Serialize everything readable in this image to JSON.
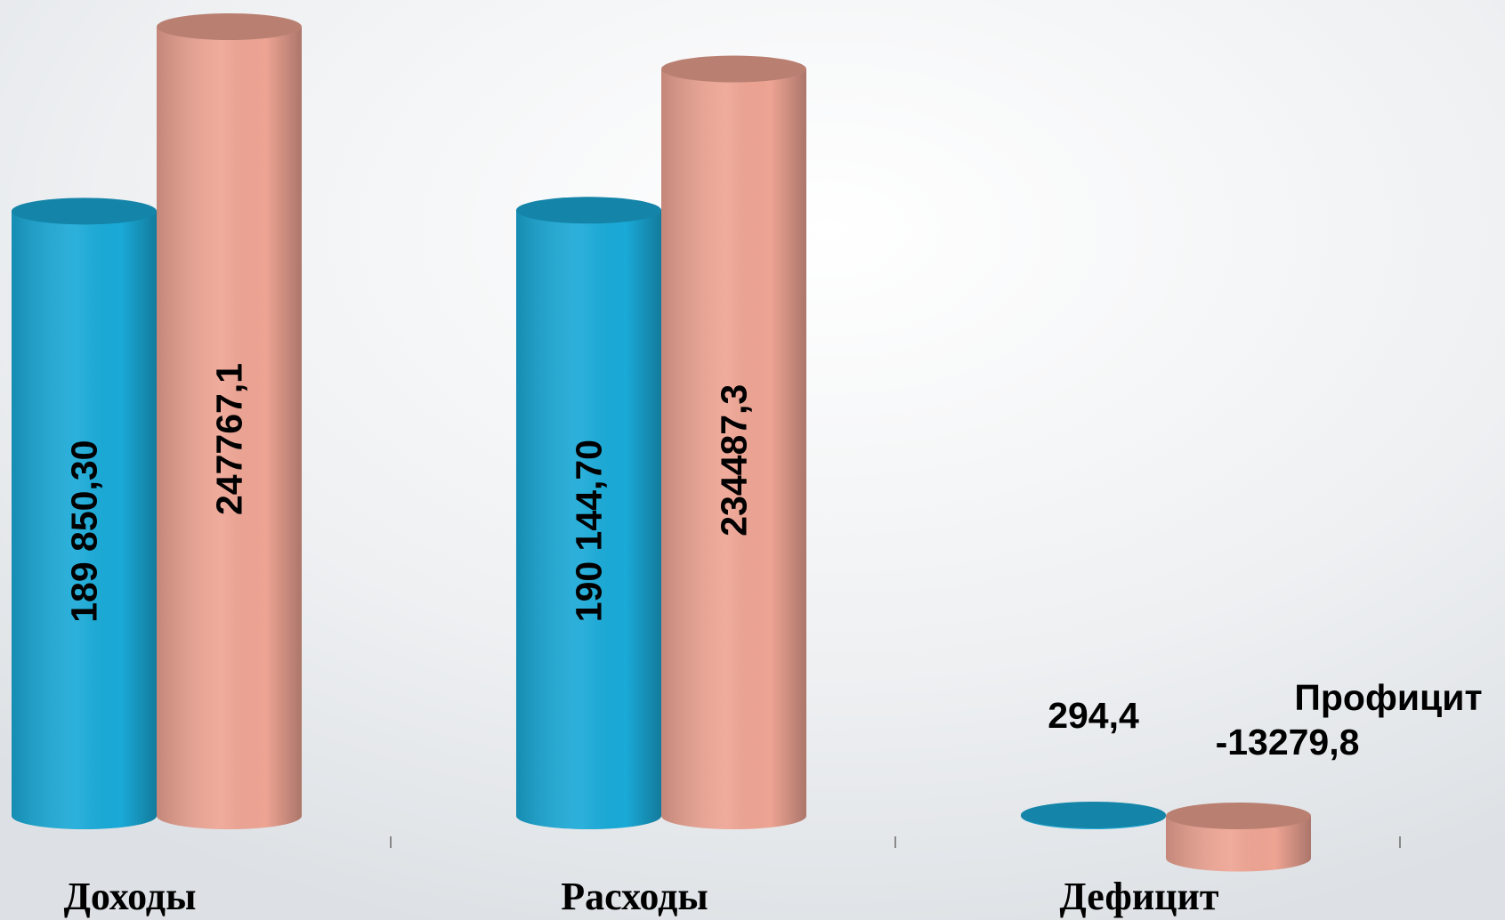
{
  "chart_data": {
    "type": "bar3d",
    "categories": [
      "Доходы",
      "Расходы",
      "Дефицит"
    ],
    "series": [
      {
        "color": "#1aaad8",
        "values": [
          189850.3,
          190144.7,
          294.4
        ],
        "value_labels": [
          "189 850,30",
          "190 144,70",
          "294,4"
        ]
      },
      {
        "color": "#eea493",
        "values": [
          247767.1,
          234487.3,
          -13279.8
        ],
        "value_labels": [
          "247767,1",
          "234487,3",
          "-13279,8"
        ]
      }
    ],
    "annotation": "Профицит"
  }
}
